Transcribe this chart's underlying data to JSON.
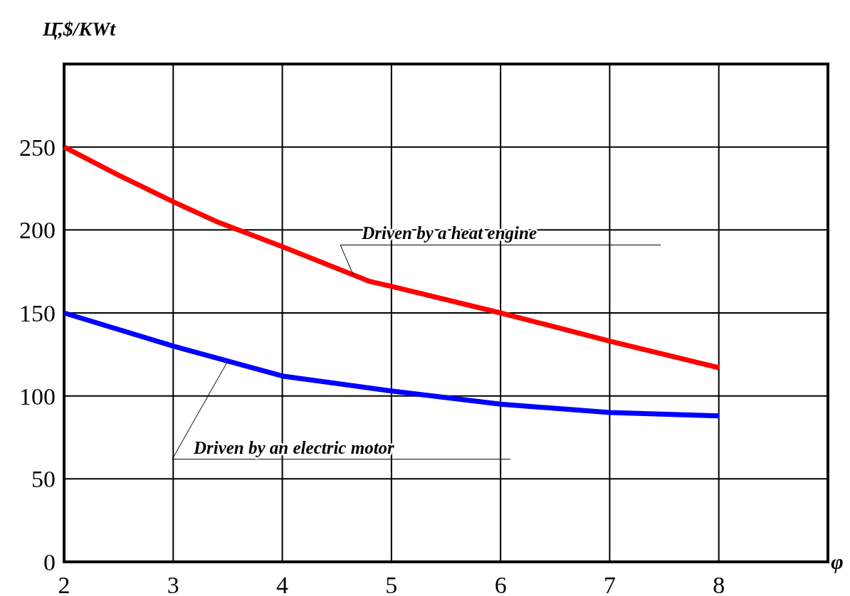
{
  "chart_data": {
    "type": "line",
    "xlabel": "φ",
    "ylabel": "Ц̄,$/KWt",
    "xlim": [
      2,
      9
    ],
    "xticks": [
      2,
      3,
      4,
      5,
      6,
      7,
      8
    ],
    "ylim": [
      0,
      300
    ],
    "yticks": [
      0,
      50,
      100,
      150,
      200,
      250,
      {
        "value": 300,
        "label": null
      }
    ],
    "grid": true,
    "marker": "none",
    "line_style": "solid",
    "series": [
      {
        "name": "Driven by a heat engine",
        "color": "#ff0000",
        "x": [
          2,
          2.5,
          3,
          3.4,
          4,
          4.8,
          5,
          6,
          7,
          8
        ],
        "values": [
          250,
          233,
          217,
          205,
          190,
          169,
          166,
          150,
          133,
          117
        ]
      },
      {
        "name": "Driven by an electric motor",
        "color": "#0000ff",
        "x": [
          2,
          3,
          3.5,
          4,
          5,
          6,
          7,
          8
        ],
        "values": [
          150,
          130,
          121,
          112,
          103,
          95,
          90,
          88
        ]
      }
    ]
  }
}
